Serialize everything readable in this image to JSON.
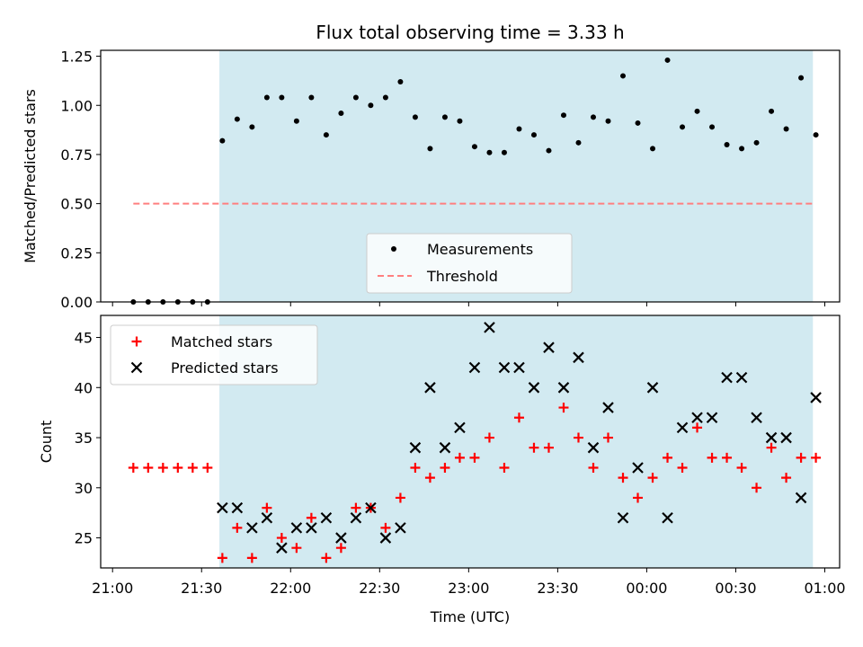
{
  "chart_data": {
    "type": "scatter",
    "title": "Flux total observing time = 3.33 h",
    "xlabel": "Time (UTC)",
    "x_ticks": [
      "21:00",
      "21:30",
      "22:00",
      "22:30",
      "23:00",
      "23:30",
      "00:00",
      "00:30",
      "01:00"
    ],
    "x_tick_minutes": [
      0,
      30,
      60,
      90,
      120,
      150,
      180,
      210,
      240
    ],
    "xlim_minutes": [
      -4,
      245
    ],
    "shaded_range_minutes": [
      36,
      236
    ],
    "shade_color": "#add8e6",
    "top": {
      "ylabel": "Matched/Predicted stars",
      "ylim": [
        0,
        1.28
      ],
      "y_ticks": [
        "0.00",
        "0.25",
        "0.50",
        "0.75",
        "1.00",
        "1.25"
      ],
      "y_tick_values": [
        0,
        0.25,
        0.5,
        0.75,
        1.0,
        1.25
      ],
      "threshold": {
        "name": "Threshold",
        "value": 0.5,
        "x_range_minutes": [
          7,
          236
        ],
        "color": "#ff7f7f"
      },
      "measurements": {
        "name": "Measurements",
        "color": "#000000",
        "x_minutes": [
          7,
          12,
          17,
          22,
          27,
          32,
          37,
          42,
          47,
          52,
          57,
          62,
          67,
          72,
          77,
          82,
          87,
          92,
          97,
          102,
          107,
          112,
          117,
          122,
          127,
          132,
          137,
          142,
          147,
          152,
          157,
          162,
          167,
          172,
          177,
          182,
          187,
          192,
          197,
          202,
          207,
          212,
          217,
          222,
          227,
          232,
          237
        ],
        "values": [
          0,
          0,
          0,
          0,
          0,
          0,
          0.82,
          0.93,
          0.89,
          1.04,
          1.04,
          0.92,
          1.04,
          0.85,
          0.96,
          1.04,
          1.0,
          1.04,
          1.12,
          0.94,
          0.78,
          0.94,
          0.92,
          0.79,
          0.76,
          0.76,
          0.88,
          0.85,
          0.77,
          0.95,
          0.81,
          0.94,
          0.92,
          1.15,
          0.91,
          0.78,
          1.23,
          0.89,
          0.97,
          0.89,
          0.8,
          0.78,
          0.81,
          0.97,
          0.88,
          1.14,
          0.85
        ]
      },
      "legend": {
        "position": "lower center"
      }
    },
    "bottom": {
      "ylabel": "Count",
      "ylim": [
        22,
        47.2
      ],
      "y_ticks": [
        "25",
        "30",
        "35",
        "40",
        "45"
      ],
      "y_tick_values": [
        25,
        30,
        35,
        40,
        45
      ],
      "series": [
        {
          "name": "Matched stars",
          "marker": "plus",
          "color": "#ff0000",
          "x_minutes": [
            7,
            12,
            17,
            22,
            27,
            32,
            37,
            42,
            47,
            52,
            57,
            62,
            67,
            72,
            77,
            82,
            87,
            92,
            97,
            102,
            107,
            112,
            117,
            122,
            127,
            132,
            137,
            142,
            147,
            152,
            157,
            162,
            167,
            172,
            177,
            182,
            187,
            192,
            197,
            202,
            207,
            212,
            217,
            222,
            227,
            232,
            237
          ],
          "values": [
            32,
            32,
            32,
            32,
            32,
            32,
            23,
            26,
            23,
            28,
            25,
            24,
            27,
            23,
            24,
            28,
            28,
            26,
            29,
            32,
            31,
            32,
            33,
            33,
            35,
            32,
            37,
            34,
            34,
            38,
            35,
            32,
            35,
            31,
            29,
            31,
            33,
            32,
            36,
            33,
            33,
            32,
            30,
            34,
            31,
            33,
            33
          ]
        },
        {
          "name": "Predicted stars",
          "marker": "x",
          "color": "#000000",
          "x_minutes": [
            37,
            42,
            47,
            52,
            57,
            62,
            67,
            72,
            77,
            82,
            87,
            92,
            97,
            102,
            107,
            112,
            117,
            122,
            127,
            132,
            137,
            142,
            147,
            152,
            157,
            162,
            167,
            172,
            177,
            182,
            187,
            192,
            197,
            202,
            207,
            212,
            217,
            222,
            227,
            232,
            237
          ],
          "values": [
            28,
            28,
            26,
            27,
            24,
            26,
            26,
            27,
            25,
            27,
            28,
            25,
            26,
            34,
            40,
            34,
            36,
            42,
            46,
            42,
            42,
            40,
            44,
            40,
            43,
            34,
            38,
            27,
            32,
            40,
            27,
            36,
            37,
            37,
            41,
            41,
            37,
            35,
            35,
            29,
            39
          ]
        }
      ],
      "legend": {
        "position": "upper left"
      }
    }
  }
}
